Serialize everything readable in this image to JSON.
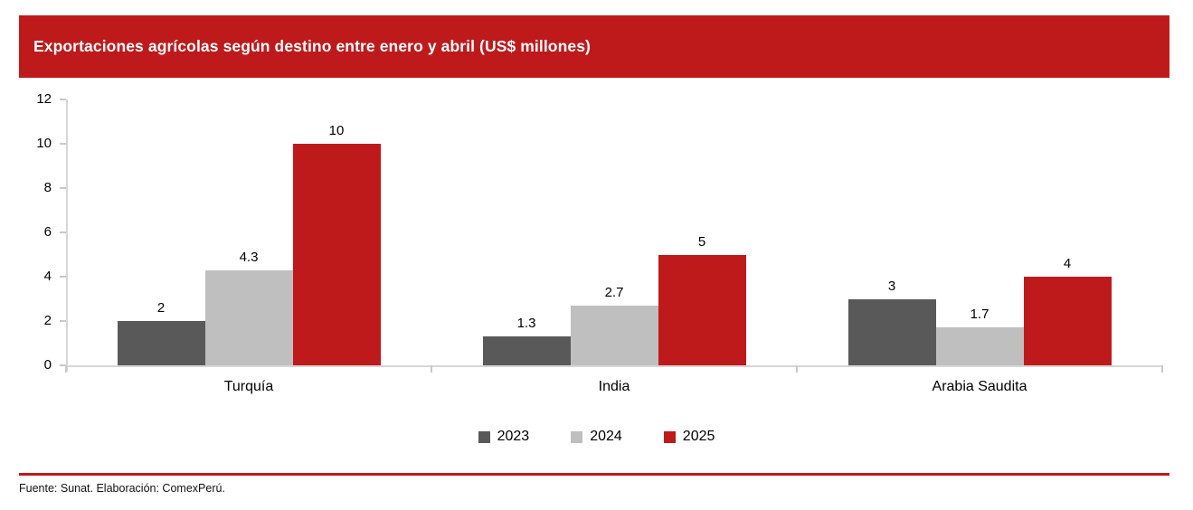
{
  "colors": {
    "accent_red": "#be1a1c",
    "series_2023": "#595959",
    "series_2024": "#bfbfbf",
    "series_2025": "#be1a1c",
    "axis": "#d6d6d6"
  },
  "header": {
    "title": "Exportaciones agrícolas según destino entre enero y abril (US$ millones)"
  },
  "footer": {
    "source": "Fuente: Sunat. Elaboración: ComexPerú."
  },
  "chart_data": {
    "type": "bar",
    "title": "Exportaciones agrícolas según destino entre enero y abril (US$ millones)",
    "categories": [
      "Turquía",
      "India",
      "Arabia Saudita"
    ],
    "series": [
      {
        "name": "2023",
        "color": "#595959",
        "values": [
          2,
          1.3,
          3
        ],
        "labels": [
          "2",
          "1.3",
          "3"
        ]
      },
      {
        "name": "2024",
        "color": "#bfbfbf",
        "values": [
          4.3,
          2.7,
          1.7
        ],
        "labels": [
          "4.3",
          "2.7",
          "1.7"
        ]
      },
      {
        "name": "2025",
        "color": "#be1a1c",
        "values": [
          10,
          5,
          4
        ],
        "labels": [
          "10",
          "5",
          "4"
        ]
      }
    ],
    "xlabel": "",
    "ylabel": "",
    "ylim": [
      0,
      12
    ],
    "yticks": [
      0,
      2,
      4,
      6,
      8,
      10,
      12
    ],
    "grid": false,
    "legend_position": "bottom"
  }
}
